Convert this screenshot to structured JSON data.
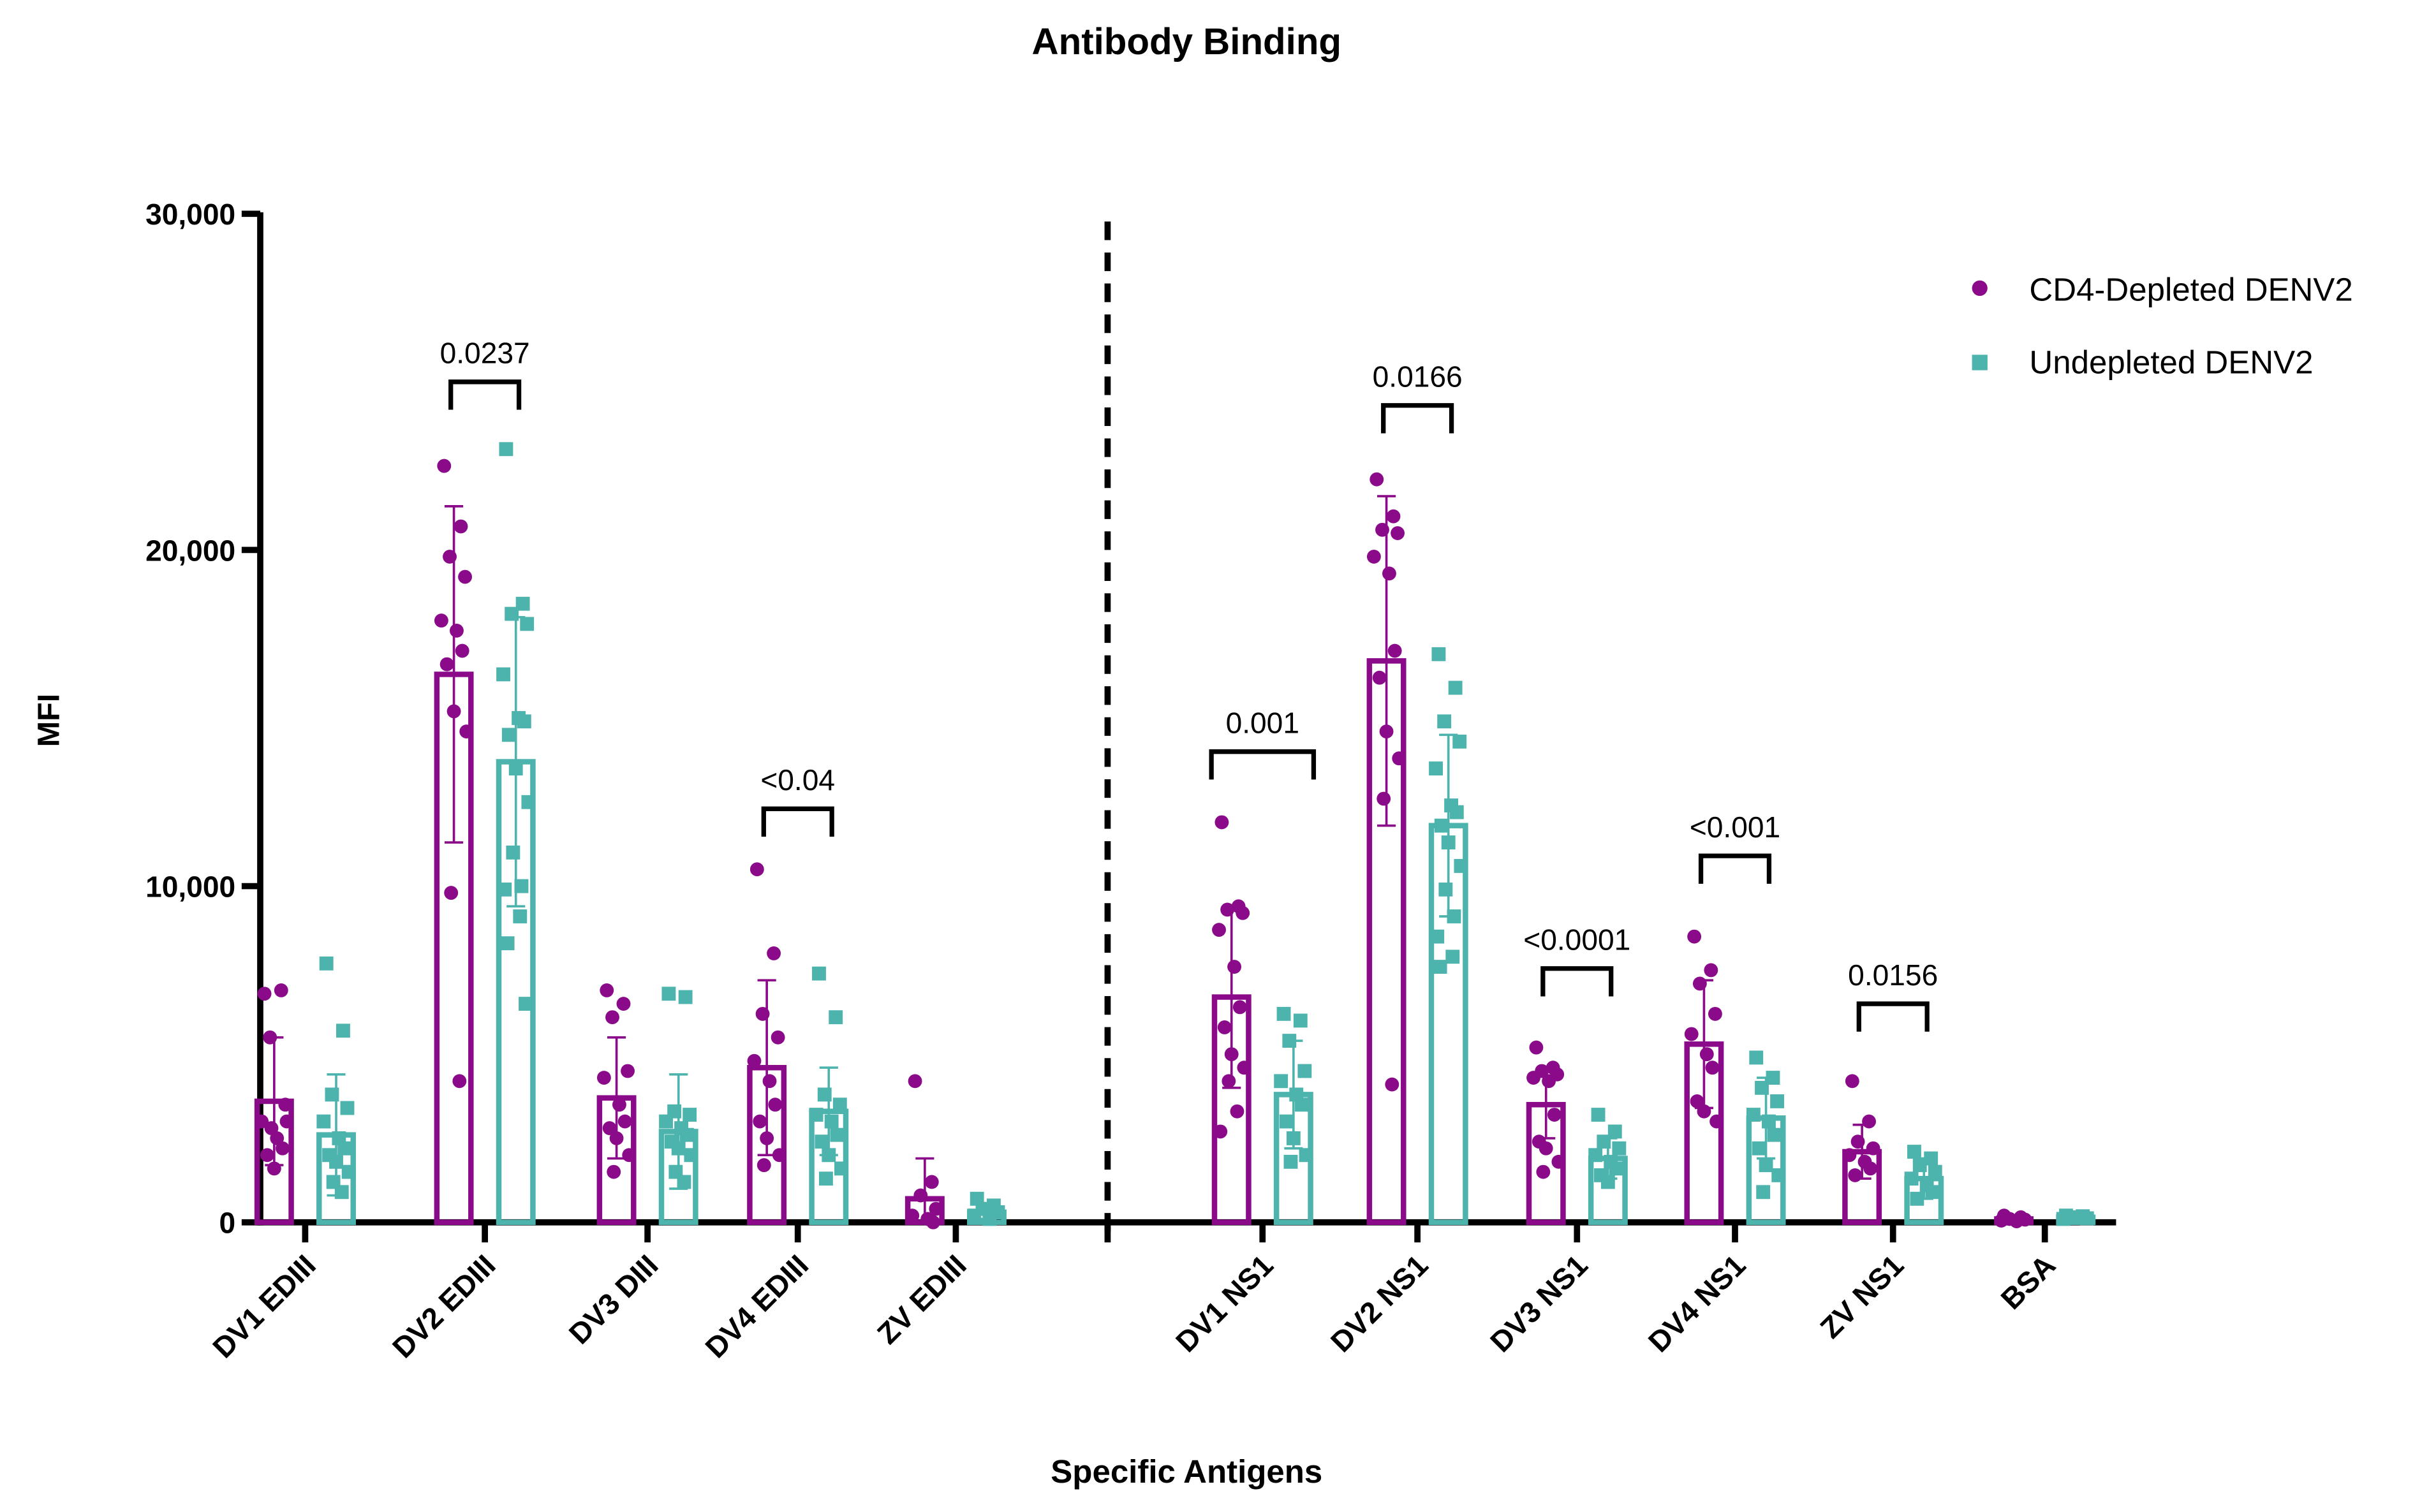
{
  "chart_data": {
    "type": "bar",
    "title": "Antibody Binding",
    "xlabel": "Specific Antigens",
    "ylabel": "MFI",
    "ylim": [
      0,
      30000
    ],
    "yticks": [
      0,
      10000,
      20000,
      30000
    ],
    "ytick_labels": [
      "0",
      "10,000",
      "20,000",
      "30,000"
    ],
    "grid": false,
    "legend_position": "top-right",
    "colors": {
      "CD4-Depleted DENV2": "#8a0a8a",
      "Undepleted DENV2": "#4db3ad"
    },
    "categories": [
      "DV1 EDIII",
      "DV2 EDIII",
      "DV3 DIII",
      "DV4 EDIII",
      "ZV EDIII",
      "DV1 NS1",
      "DV2 NS1",
      "DV3 NS1",
      "DV4 NS1",
      "ZV NS1",
      "BSA"
    ],
    "series": [
      {
        "name": "CD4-Depleted DENV2",
        "marker": "circle",
        "values": [
          3600,
          16300,
          3700,
          4600,
          700,
          6700,
          16700,
          3500,
          5300,
          2100,
          100
        ],
        "sd": [
          1900,
          5000,
          1800,
          2600,
          1200,
          2700,
          4900,
          1000,
          1900,
          800,
          50
        ],
        "points": [
          [
            6800,
            6900,
            5500,
            3500,
            3000,
            2500,
            2200,
            2000,
            1600,
            3000,
            2800
          ],
          [
            22500,
            20700,
            19800,
            19200,
            17900,
            17600,
            17000,
            16600,
            15200,
            14600,
            9800,
            4200
          ],
          [
            6900,
            6500,
            6100,
            4500,
            4300,
            3500,
            3000,
            2800,
            2500,
            2000,
            1500
          ],
          [
            10500,
            8000,
            6200,
            5500,
            4800,
            4200,
            3500,
            3000,
            2500,
            2000,
            1700
          ],
          [
            4200,
            1200,
            800,
            400,
            200,
            100,
            0
          ],
          [
            11900,
            9400,
            9300,
            9200,
            8700,
            7600,
            6400,
            5800,
            5000,
            4600,
            4200,
            3300,
            2700
          ],
          [
            22100,
            21000,
            20600,
            20500,
            19800,
            19300,
            17000,
            16200,
            14600,
            13800,
            12600,
            4100
          ],
          [
            5200,
            4600,
            4500,
            4400,
            4300,
            4200,
            3200,
            2400,
            2200,
            1800,
            1500
          ],
          [
            8500,
            7500,
            7100,
            6200,
            5600,
            5000,
            4600,
            3600,
            3300,
            3000
          ],
          [
            4200,
            3000,
            2400,
            2200,
            2000,
            1800,
            1600,
            1400
          ],
          [
            200,
            150,
            100,
            80,
            50,
            30
          ]
        ]
      },
      {
        "name": "Undepleted DENV2",
        "marker": "square",
        "values": [
          2600,
          13700,
          2700,
          3300,
          300,
          3800,
          11800,
          1900,
          3100,
          1300,
          150
        ],
        "sd": [
          1800,
          4300,
          1700,
          1300,
          200,
          1600,
          2700,
          600,
          1200,
          600,
          50
        ],
        "points": [
          [
            7700,
            5700,
            3800,
            3400,
            3000,
            2500,
            2200,
            2000,
            1800,
            1500,
            1200,
            900
          ],
          [
            23000,
            18400,
            18100,
            17800,
            16300,
            15000,
            14900,
            14500,
            13500,
            12500,
            11000,
            10000,
            9900,
            9100,
            8300,
            6500
          ],
          [
            6800,
            6700,
            3300,
            3200,
            3000,
            2800,
            2600,
            2400,
            2200,
            2000,
            1500,
            1200
          ],
          [
            7400,
            6100,
            3800,
            3500,
            3200,
            3000,
            2600,
            2400,
            2000,
            1600,
            1300
          ],
          [
            700,
            500,
            400,
            300,
            200,
            100
          ],
          [
            6200,
            6000,
            5400,
            4500,
            4200,
            3800,
            3500,
            3000,
            2500,
            2000,
            1800
          ],
          [
            16900,
            15900,
            14900,
            14300,
            13500,
            12400,
            12200,
            11800,
            11300,
            10600,
            9900,
            9100,
            8500,
            7900,
            7600
          ],
          [
            3200,
            2700,
            2400,
            2200,
            2000,
            1800,
            1600,
            1400,
            1200
          ],
          [
            4900,
            4300,
            4000,
            3600,
            3200,
            3000,
            2600,
            2200,
            1700,
            1400,
            900
          ],
          [
            2100,
            1900,
            1700,
            1500,
            1300,
            1100,
            900,
            700
          ],
          [
            200,
            180,
            150,
            120,
            100
          ]
        ]
      }
    ],
    "significance": [
      {
        "category": "DV2 EDIII",
        "label": "0.0237",
        "y": 25000
      },
      {
        "category": "DV4 EDIII",
        "label": "<0.04",
        "y": 12300
      },
      {
        "category": "DV1 NS1",
        "label": "0.001",
        "y": 14000
      },
      {
        "category": "DV2 NS1",
        "label": "0.0166",
        "y": 24300
      },
      {
        "category": "DV3 NS1",
        "label": "<0.0001",
        "y": 7550
      },
      {
        "category": "DV4 NS1",
        "label": "<0.001",
        "y": 10900
      },
      {
        "category": "ZV NS1",
        "label": "0.0156",
        "y": 6500
      }
    ]
  }
}
